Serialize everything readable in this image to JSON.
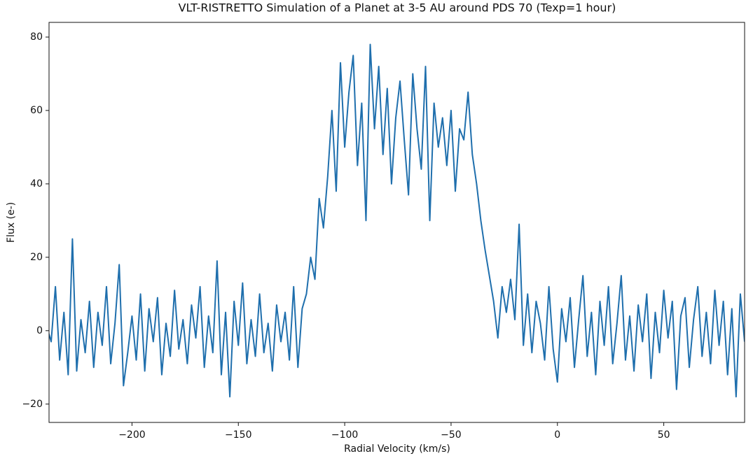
{
  "chart_data": {
    "type": "line",
    "title": "VLT-RISTRETTO Simulation of a Planet at 3-5 AU around PDS 70 (Texp=1 hour)",
    "x_label": "Radial Velocity (km/s)",
    "y_label": "Flux (e-)",
    "color": "#1f6fad",
    "x": [
      -240,
      -238,
      -236,
      -234,
      -232,
      -230,
      -228,
      -226,
      -224,
      -222,
      -220,
      -218,
      -216,
      -214,
      -212,
      -210,
      -208,
      -206,
      -204,
      -202,
      -200,
      -198,
      -196,
      -194,
      -192,
      -190,
      -188,
      -186,
      -184,
      -182,
      -180,
      -178,
      -176,
      -174,
      -172,
      -170,
      -168,
      -166,
      -164,
      -162,
      -160,
      -158,
      -156,
      -154,
      -152,
      -150,
      -148,
      -146,
      -144,
      -142,
      -140,
      -138,
      -136,
      -134,
      -132,
      -130,
      -128,
      -126,
      -124,
      -122,
      -120,
      -118,
      -116,
      -114,
      -112,
      -110,
      -108,
      -106,
      -104,
      -102,
      -100,
      -98,
      -96,
      -94,
      -92,
      -90,
      -88,
      -86,
      -84,
      -82,
      -80,
      -78,
      -76,
      -74,
      -72,
      -70,
      -68,
      -66,
      -64,
      -62,
      -60,
      -58,
      -56,
      -54,
      -52,
      -50,
      -48,
      -46,
      -44,
      -42,
      -40,
      -38,
      -36,
      -34,
      -32,
      -30,
      -28,
      -26,
      -24,
      -22,
      -20,
      -18,
      -16,
      -14,
      -12,
      -10,
      -8,
      -6,
      -4,
      -2,
      0,
      2,
      4,
      6,
      8,
      10,
      12,
      14,
      16,
      18,
      20,
      22,
      24,
      26,
      28,
      30,
      32,
      34,
      36,
      38,
      40,
      42,
      44,
      46,
      48,
      50,
      52,
      54,
      56,
      58,
      60,
      62,
      64,
      66,
      68,
      70,
      72,
      74,
      76,
      78,
      80,
      82,
      84,
      86,
      88
    ],
    "values": [
      1,
      -3,
      12,
      -8,
      5,
      -12,
      25,
      -11,
      3,
      -6,
      8,
      -10,
      5,
      -4,
      12,
      -9,
      2,
      18,
      -15,
      -6,
      4,
      -8,
      10,
      -11,
      6,
      -3,
      9,
      -12,
      2,
      -7,
      11,
      -5,
      3,
      -9,
      7,
      -2,
      12,
      -10,
      4,
      -6,
      19,
      -12,
      5,
      -18,
      8,
      -4,
      13,
      -9,
      3,
      -7,
      10,
      -6,
      2,
      -11,
      7,
      -3,
      5,
      -8,
      12,
      -10,
      6,
      10,
      20,
      14,
      36,
      28,
      42,
      60,
      38,
      73,
      50,
      65,
      75,
      45,
      62,
      30,
      78,
      55,
      72,
      48,
      66,
      40,
      58,
      68,
      52,
      37,
      70,
      55,
      44,
      72,
      30,
      62,
      50,
      58,
      45,
      60,
      38,
      55,
      52,
      65,
      48,
      40,
      30,
      22,
      15,
      8,
      -2,
      12,
      5,
      14,
      3,
      29,
      -4,
      10,
      -6,
      8,
      2,
      -8,
      12,
      -5,
      -14,
      6,
      -3,
      9,
      -10,
      3,
      15,
      -7,
      5,
      -12,
      8,
      -4,
      12,
      -9,
      2,
      15,
      -8,
      4,
      -11,
      7,
      -3,
      10,
      -13,
      5,
      -6,
      11,
      -2,
      8,
      -16,
      4,
      9,
      -10,
      3,
      12,
      -7,
      5,
      -9,
      11,
      -4,
      8,
      -12,
      6,
      -18,
      10,
      -3
    ],
    "xlim": [
      -239,
      88
    ],
    "ylim": [
      -25,
      84
    ],
    "xticks": [
      {
        "value": -200,
        "label": "−200"
      },
      {
        "value": -150,
        "label": "−150"
      },
      {
        "value": -100,
        "label": "−100"
      },
      {
        "value": -50,
        "label": "−50"
      },
      0,
      50
    ],
    "yticks": [
      {
        "value": -20,
        "label": "−20"
      },
      0,
      20,
      40,
      60,
      80
    ]
  }
}
